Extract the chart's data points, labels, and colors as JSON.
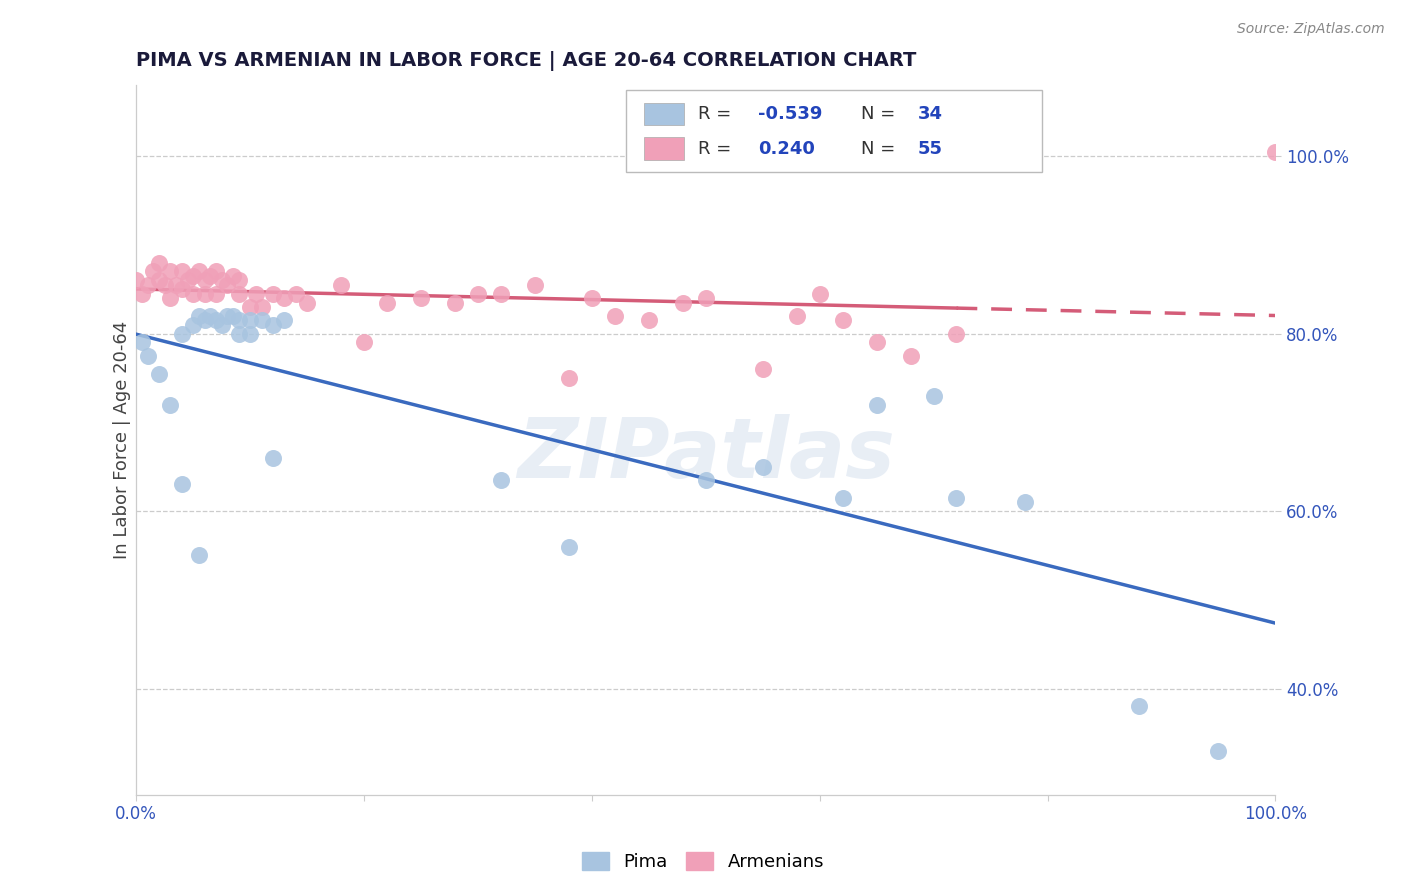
{
  "title": "PIMA VS ARMENIAN IN LABOR FORCE | AGE 20-64 CORRELATION CHART",
  "source_text": "Source: ZipAtlas.com",
  "ylabel": "In Labor Force | Age 20-64",
  "xlim": [
    0.0,
    1.0
  ],
  "ylim": [
    0.28,
    1.08
  ],
  "pima_R": "-0.539",
  "pima_N": "34",
  "armenian_R": "0.240",
  "armenian_N": "55",
  "pima_color": "#a8c4e0",
  "armenian_color": "#f0a0b8",
  "pima_line_color": "#3a6abf",
  "armenian_line_color": "#d45c78",
  "watermark": "ZIPatlas",
  "pima_x": [
    0.005,
    0.01,
    0.02,
    0.03,
    0.04,
    0.05,
    0.055,
    0.06,
    0.065,
    0.07,
    0.075,
    0.08,
    0.085,
    0.09,
    0.09,
    0.1,
    0.1,
    0.11,
    0.12,
    0.13,
    0.04,
    0.055,
    0.12,
    0.32,
    0.38,
    0.5,
    0.55,
    0.62,
    0.65,
    0.7,
    0.72,
    0.78,
    0.88,
    0.95
  ],
  "pima_y": [
    0.79,
    0.775,
    0.755,
    0.72,
    0.8,
    0.81,
    0.82,
    0.815,
    0.82,
    0.815,
    0.81,
    0.82,
    0.82,
    0.815,
    0.8,
    0.815,
    0.8,
    0.815,
    0.81,
    0.815,
    0.63,
    0.55,
    0.66,
    0.635,
    0.56,
    0.635,
    0.65,
    0.615,
    0.72,
    0.73,
    0.615,
    0.61,
    0.38,
    0.33
  ],
  "armenian_x": [
    0.0,
    0.005,
    0.01,
    0.015,
    0.02,
    0.02,
    0.025,
    0.03,
    0.03,
    0.035,
    0.04,
    0.04,
    0.045,
    0.05,
    0.05,
    0.055,
    0.06,
    0.06,
    0.065,
    0.07,
    0.07,
    0.075,
    0.08,
    0.085,
    0.09,
    0.09,
    0.1,
    0.105,
    0.11,
    0.12,
    0.13,
    0.14,
    0.15,
    0.18,
    0.2,
    0.22,
    0.25,
    0.28,
    0.3,
    0.32,
    0.35,
    0.38,
    0.4,
    0.42,
    0.45,
    0.48,
    0.5,
    0.55,
    0.58,
    0.6,
    0.62,
    0.65,
    0.68,
    0.72,
    1.0
  ],
  "armenian_y": [
    0.86,
    0.845,
    0.855,
    0.87,
    0.86,
    0.88,
    0.855,
    0.84,
    0.87,
    0.855,
    0.85,
    0.87,
    0.86,
    0.865,
    0.845,
    0.87,
    0.86,
    0.845,
    0.865,
    0.87,
    0.845,
    0.86,
    0.855,
    0.865,
    0.845,
    0.86,
    0.83,
    0.845,
    0.83,
    0.845,
    0.84,
    0.845,
    0.835,
    0.855,
    0.79,
    0.835,
    0.84,
    0.835,
    0.845,
    0.845,
    0.855,
    0.75,
    0.84,
    0.82,
    0.815,
    0.835,
    0.84,
    0.76,
    0.82,
    0.845,
    0.815,
    0.79,
    0.775,
    0.8,
    1.005
  ],
  "bottom_legend": [
    "Pima",
    "Armenians"
  ],
  "title_color": "#1a1a3a",
  "tick_color": "#3355bb",
  "label_color": "#444444",
  "grid_color": "#cccccc",
  "source_color": "#888888"
}
